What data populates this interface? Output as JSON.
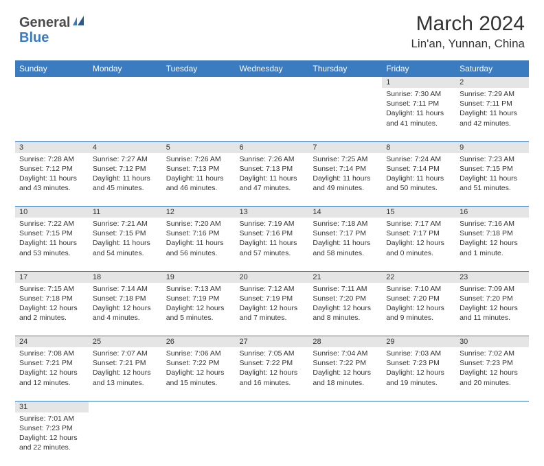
{
  "logo": {
    "text1": "General",
    "text2": "Blue"
  },
  "title": "March 2024",
  "location": "Lin'an, Yunnan, China",
  "colors": {
    "header_bg": "#3b7bbf",
    "header_text": "#ffffff",
    "daynum_bg": "#e5e5e5",
    "border": "#3b7bbf",
    "text": "#333333",
    "logo_gray": "#4a4a4a",
    "logo_blue": "#3b7bbf"
  },
  "day_names": [
    "Sunday",
    "Monday",
    "Tuesday",
    "Wednesday",
    "Thursday",
    "Friday",
    "Saturday"
  ],
  "weeks": [
    [
      null,
      null,
      null,
      null,
      null,
      {
        "n": "1",
        "sunrise": "Sunrise: 7:30 AM",
        "sunset": "Sunset: 7:11 PM",
        "daylight": "Daylight: 11 hours and 41 minutes."
      },
      {
        "n": "2",
        "sunrise": "Sunrise: 7:29 AM",
        "sunset": "Sunset: 7:11 PM",
        "daylight": "Daylight: 11 hours and 42 minutes."
      }
    ],
    [
      {
        "n": "3",
        "sunrise": "Sunrise: 7:28 AM",
        "sunset": "Sunset: 7:12 PM",
        "daylight": "Daylight: 11 hours and 43 minutes."
      },
      {
        "n": "4",
        "sunrise": "Sunrise: 7:27 AM",
        "sunset": "Sunset: 7:12 PM",
        "daylight": "Daylight: 11 hours and 45 minutes."
      },
      {
        "n": "5",
        "sunrise": "Sunrise: 7:26 AM",
        "sunset": "Sunset: 7:13 PM",
        "daylight": "Daylight: 11 hours and 46 minutes."
      },
      {
        "n": "6",
        "sunrise": "Sunrise: 7:26 AM",
        "sunset": "Sunset: 7:13 PM",
        "daylight": "Daylight: 11 hours and 47 minutes."
      },
      {
        "n": "7",
        "sunrise": "Sunrise: 7:25 AM",
        "sunset": "Sunset: 7:14 PM",
        "daylight": "Daylight: 11 hours and 49 minutes."
      },
      {
        "n": "8",
        "sunrise": "Sunrise: 7:24 AM",
        "sunset": "Sunset: 7:14 PM",
        "daylight": "Daylight: 11 hours and 50 minutes."
      },
      {
        "n": "9",
        "sunrise": "Sunrise: 7:23 AM",
        "sunset": "Sunset: 7:15 PM",
        "daylight": "Daylight: 11 hours and 51 minutes."
      }
    ],
    [
      {
        "n": "10",
        "sunrise": "Sunrise: 7:22 AM",
        "sunset": "Sunset: 7:15 PM",
        "daylight": "Daylight: 11 hours and 53 minutes."
      },
      {
        "n": "11",
        "sunrise": "Sunrise: 7:21 AM",
        "sunset": "Sunset: 7:15 PM",
        "daylight": "Daylight: 11 hours and 54 minutes."
      },
      {
        "n": "12",
        "sunrise": "Sunrise: 7:20 AM",
        "sunset": "Sunset: 7:16 PM",
        "daylight": "Daylight: 11 hours and 56 minutes."
      },
      {
        "n": "13",
        "sunrise": "Sunrise: 7:19 AM",
        "sunset": "Sunset: 7:16 PM",
        "daylight": "Daylight: 11 hours and 57 minutes."
      },
      {
        "n": "14",
        "sunrise": "Sunrise: 7:18 AM",
        "sunset": "Sunset: 7:17 PM",
        "daylight": "Daylight: 11 hours and 58 minutes."
      },
      {
        "n": "15",
        "sunrise": "Sunrise: 7:17 AM",
        "sunset": "Sunset: 7:17 PM",
        "daylight": "Daylight: 12 hours and 0 minutes."
      },
      {
        "n": "16",
        "sunrise": "Sunrise: 7:16 AM",
        "sunset": "Sunset: 7:18 PM",
        "daylight": "Daylight: 12 hours and 1 minute."
      }
    ],
    [
      {
        "n": "17",
        "sunrise": "Sunrise: 7:15 AM",
        "sunset": "Sunset: 7:18 PM",
        "daylight": "Daylight: 12 hours and 2 minutes."
      },
      {
        "n": "18",
        "sunrise": "Sunrise: 7:14 AM",
        "sunset": "Sunset: 7:18 PM",
        "daylight": "Daylight: 12 hours and 4 minutes."
      },
      {
        "n": "19",
        "sunrise": "Sunrise: 7:13 AM",
        "sunset": "Sunset: 7:19 PM",
        "daylight": "Daylight: 12 hours and 5 minutes."
      },
      {
        "n": "20",
        "sunrise": "Sunrise: 7:12 AM",
        "sunset": "Sunset: 7:19 PM",
        "daylight": "Daylight: 12 hours and 7 minutes."
      },
      {
        "n": "21",
        "sunrise": "Sunrise: 7:11 AM",
        "sunset": "Sunset: 7:20 PM",
        "daylight": "Daylight: 12 hours and 8 minutes."
      },
      {
        "n": "22",
        "sunrise": "Sunrise: 7:10 AM",
        "sunset": "Sunset: 7:20 PM",
        "daylight": "Daylight: 12 hours and 9 minutes."
      },
      {
        "n": "23",
        "sunrise": "Sunrise: 7:09 AM",
        "sunset": "Sunset: 7:20 PM",
        "daylight": "Daylight: 12 hours and 11 minutes."
      }
    ],
    [
      {
        "n": "24",
        "sunrise": "Sunrise: 7:08 AM",
        "sunset": "Sunset: 7:21 PM",
        "daylight": "Daylight: 12 hours and 12 minutes."
      },
      {
        "n": "25",
        "sunrise": "Sunrise: 7:07 AM",
        "sunset": "Sunset: 7:21 PM",
        "daylight": "Daylight: 12 hours and 13 minutes."
      },
      {
        "n": "26",
        "sunrise": "Sunrise: 7:06 AM",
        "sunset": "Sunset: 7:22 PM",
        "daylight": "Daylight: 12 hours and 15 minutes."
      },
      {
        "n": "27",
        "sunrise": "Sunrise: 7:05 AM",
        "sunset": "Sunset: 7:22 PM",
        "daylight": "Daylight: 12 hours and 16 minutes."
      },
      {
        "n": "28",
        "sunrise": "Sunrise: 7:04 AM",
        "sunset": "Sunset: 7:22 PM",
        "daylight": "Daylight: 12 hours and 18 minutes."
      },
      {
        "n": "29",
        "sunrise": "Sunrise: 7:03 AM",
        "sunset": "Sunset: 7:23 PM",
        "daylight": "Daylight: 12 hours and 19 minutes."
      },
      {
        "n": "30",
        "sunrise": "Sunrise: 7:02 AM",
        "sunset": "Sunset: 7:23 PM",
        "daylight": "Daylight: 12 hours and 20 minutes."
      }
    ],
    [
      {
        "n": "31",
        "sunrise": "Sunrise: 7:01 AM",
        "sunset": "Sunset: 7:23 PM",
        "daylight": "Daylight: 12 hours and 22 minutes."
      },
      null,
      null,
      null,
      null,
      null,
      null
    ]
  ]
}
